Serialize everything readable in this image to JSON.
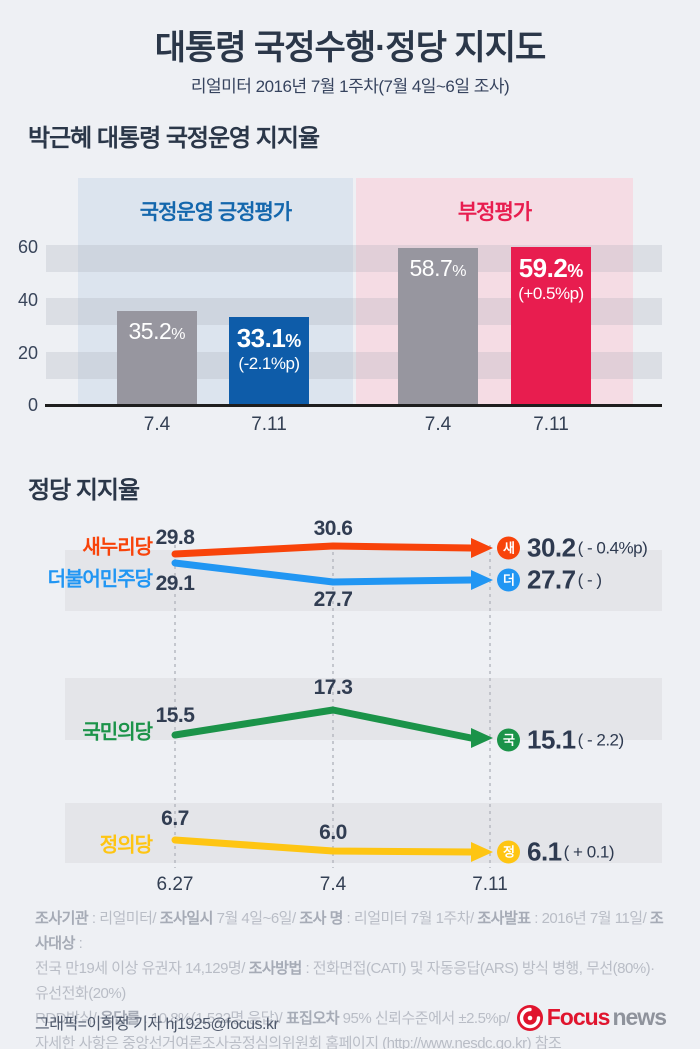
{
  "header": {
    "title": "대통령 국정수행·정당 지지도",
    "subtitle": "리얼미터 2016년 7월 1주차(7월 4일~6일 조사)"
  },
  "approval_section": {
    "title": "박근혜 대통령 국정운영 지지율"
  },
  "party_section": {
    "title": "정당 지지율"
  },
  "colors": {
    "background": "#eef0f4",
    "title_navy": "#2b3749",
    "positive_panel": "#dce4ee",
    "negative_panel": "#f5dce4",
    "positive_accent": "#1467ad",
    "negative_accent": "#e81d4f",
    "neutral_bar": "#97969f",
    "band_gray": "#e4e5e9",
    "logo_red": "#e0152e"
  },
  "chart_data": [
    {
      "type": "bar",
      "title": "박근혜 대통령 국정운영 지지율",
      "ylabel": "",
      "ylim": [
        0,
        75
      ],
      "yticks": [
        0,
        20,
        40,
        60
      ],
      "groups": [
        {
          "label": "국정운영 긍정평가",
          "label_color": "#1467ad",
          "panel_color": "#dce4ee",
          "bars": [
            {
              "x": "7.4",
              "value": 35.2,
              "label": "35.2",
              "unit": "%",
              "color": "#97969f"
            },
            {
              "x": "7.11",
              "value": 33.1,
              "label": "33.1",
              "unit": "%",
              "change": "(-2.1%p)",
              "color": "#0e5ca9"
            }
          ]
        },
        {
          "label": "부정평가",
          "label_color": "#e81d4f",
          "panel_color": "#f5dce4",
          "bars": [
            {
              "x": "7.4",
              "value": 58.7,
              "label": "58.7",
              "unit": "%",
              "color": "#97969f"
            },
            {
              "x": "7.11",
              "value": 59.2,
              "label": "59.2",
              "unit": "%",
              "change": "(+0.5%p)",
              "color": "#e81d4f"
            }
          ]
        }
      ]
    },
    {
      "type": "line",
      "title": "정당 지지율",
      "x": [
        "6.27",
        "7.4",
        "7.11"
      ],
      "legend_position": "left",
      "series": [
        {
          "name": "새누리당",
          "color": "#f8430a",
          "badge": "새",
          "values": [
            29.8,
            30.6,
            30.2
          ],
          "final_label": "30.2",
          "change": "( - 0.4%p)"
        },
        {
          "name": "더불어민주당",
          "color": "#2196f3",
          "badge": "더",
          "values": [
            29.1,
            27.7,
            27.7
          ],
          "final_label": "27.7",
          "change": "( - )"
        },
        {
          "name": "국민의당",
          "color": "#1b9349",
          "badge": "국",
          "values": [
            15.5,
            17.3,
            15.1
          ],
          "final_label": "15.1",
          "change": "( - 2.2)"
        },
        {
          "name": "정의당",
          "color": "#fec513",
          "badge": "정",
          "values": [
            6.7,
            6.0,
            6.1
          ],
          "final_label": "6.1",
          "change": "( + 0.1)"
        }
      ]
    }
  ],
  "footer": {
    "lines": [
      [
        [
          "b",
          "조사기관"
        ],
        [
          "n",
          " : 리얼미터/ "
        ],
        [
          "b",
          "조사일시"
        ],
        [
          "n",
          " 7월 4일~6일/ "
        ],
        [
          "b",
          "조사 명"
        ],
        [
          "n",
          " : 리얼미터 7월 1주차/ "
        ],
        [
          "b",
          "조사발표"
        ],
        [
          "n",
          " : 2016년 7월 11일/ "
        ],
        [
          "b",
          "조사대상"
        ],
        [
          "n",
          " :"
        ]
      ],
      [
        [
          "n",
          "전국 만19세 이상 유권자 14,129명/ "
        ],
        [
          "b",
          "조사방법"
        ],
        [
          "n",
          " : 전화면접(CATI) 및 자동응답(ARS) 방식 병행, 무선(80%)·유선전화(20%)"
        ]
      ],
      [
        [
          "n",
          "RDD방식/ "
        ],
        [
          "b",
          "응답률"
        ],
        [
          "n",
          " : 10.8%(1,522명 응답)/ "
        ],
        [
          "b",
          "표집오차"
        ],
        [
          "n",
          " 95% 신뢰수준에서 ±2.5%p/"
        ]
      ],
      [
        [
          "n",
          "자세한 사항은 중앙선거여론조사공정심의위원회 홈페이지 (http://www.nesdc.go.kr) 참조"
        ]
      ]
    ],
    "byline": "그래픽=이희정 기자 hj1925@focus.kr",
    "logo": {
      "focus": "Focus",
      "news": "news"
    }
  }
}
